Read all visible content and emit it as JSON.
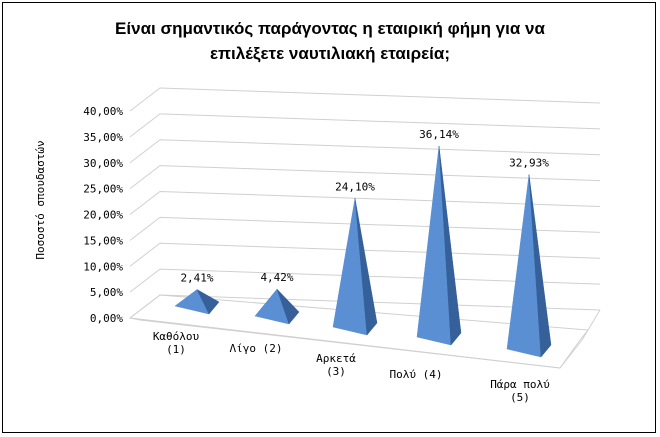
{
  "chart_data": {
    "type": "bar",
    "style": "3d-pyramid",
    "title": [
      "Είναι σημαντικός παράγοντας η εταιρική φήμη για να",
      "επιλέξετε ναυτιλιακή εταιρεία;"
    ],
    "xlabel": "",
    "ylabel": "Ποσοστό σπουδαστών",
    "categories": [
      [
        "Καθόλου",
        "(1)"
      ],
      [
        "Λίγο (2)"
      ],
      [
        "Αρκετά",
        "(3)"
      ],
      [
        "Πολύ (4)"
      ],
      [
        "Πάρα πολύ",
        "(5)"
      ]
    ],
    "values": [
      2.41,
      4.42,
      24.1,
      36.14,
      32.93
    ],
    "data_labels": [
      "2,41%",
      "4,42%",
      "24,10%",
      "36,14%",
      "32,93%"
    ],
    "y_ticks": [
      "0,00%",
      "5,00%",
      "10,00%",
      "15,00%",
      "20,00%",
      "25,00%",
      "30,00%",
      "35,00%",
      "40,00%"
    ],
    "ylim": [
      0,
      40
    ],
    "grid": true,
    "colors": {
      "front": "#5b8fd4",
      "side": "#35609a",
      "grid": "#d0d0d0"
    }
  }
}
